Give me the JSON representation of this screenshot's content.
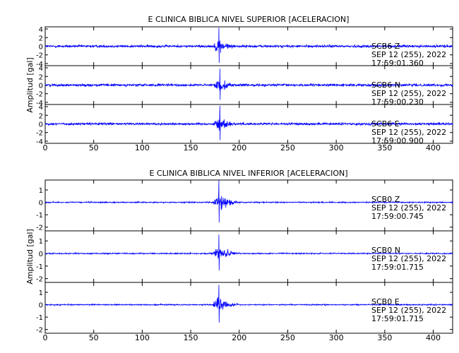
{
  "chart_data": [
    {
      "type": "line",
      "title": "E CLINICA BIBLICA NIVEL SUPERIOR [ACELERACION]",
      "ylabel": "Amplitud [gal]",
      "xlim": [
        0,
        420
      ],
      "x_ticks": [
        0,
        50,
        100,
        150,
        200,
        250,
        300,
        350,
        400
      ],
      "grid": false,
      "line_color": "#0000ff",
      "traces": [
        {
          "name": "SCB6 Z",
          "date": "SEP 12 (255), 2022",
          "time": "17:59:01.360",
          "ylim": [
            -4.5,
            4.5
          ],
          "y_ticks": [
            4,
            2,
            0,
            -2,
            -4
          ],
          "event_onset_s": 172,
          "peak_time_s": 179,
          "peak_amplitude": 4.3,
          "noise_level": 0.35
        },
        {
          "name": "SCB6 N",
          "date": "SEP 12 (255), 2022",
          "time": "17:59:00.230",
          "ylim": [
            -4.5,
            4.5
          ],
          "y_ticks": [
            4,
            2,
            0,
            -2,
            -4
          ],
          "event_onset_s": 172,
          "peak_time_s": 180,
          "peak_amplitude": 3.8,
          "noise_level": 0.35
        },
        {
          "name": "SCB6 E",
          "date": "SEP 12 (255), 2022",
          "time": "17:59:00.900",
          "ylim": [
            -4.5,
            4.5
          ],
          "y_ticks": [
            4,
            2,
            0,
            -2,
            -4
          ],
          "event_onset_s": 172,
          "peak_time_s": 180,
          "peak_amplitude": 4.2,
          "noise_level": 0.35
        }
      ]
    },
    {
      "type": "line",
      "title": "E CLINICA BIBLICA NIVEL INFERIOR [ACELERACION]",
      "ylabel": "Amplitud [gal]",
      "xlim": [
        0,
        420
      ],
      "x_ticks": [
        0,
        50,
        100,
        150,
        200,
        250,
        300,
        350,
        400
      ],
      "grid": false,
      "line_color": "#0000ff",
      "traces": [
        {
          "name": "SCB0 Z",
          "date": "SEP 12 (255), 2022",
          "time": "17:59:00.745",
          "ylim": [
            -2.3,
            1.8
          ],
          "y_ticks": [
            1,
            0,
            -1,
            -2
          ],
          "event_onset_s": 172,
          "peak_time_s": 179,
          "peak_amplitude": 1.8,
          "noise_level": 0.06
        },
        {
          "name": "SCB0 N",
          "date": "SEP 12 (255), 2022",
          "time": "17:59:01.715",
          "ylim": [
            -2.3,
            1.8
          ],
          "y_ticks": [
            1,
            0,
            -1,
            -2
          ],
          "event_onset_s": 172,
          "peak_time_s": 179,
          "peak_amplitude": 1.5,
          "noise_level": 0.06
        },
        {
          "name": "SCB0 E",
          "date": "SEP 12 (255), 2022",
          "time": "17:59:01.715",
          "ylim": [
            -2.3,
            1.8
          ],
          "y_ticks": [
            1,
            0,
            -1,
            -2
          ],
          "event_onset_s": 172,
          "peak_time_s": 179,
          "peak_amplitude": 1.6,
          "noise_level": 0.06
        }
      ]
    }
  ]
}
